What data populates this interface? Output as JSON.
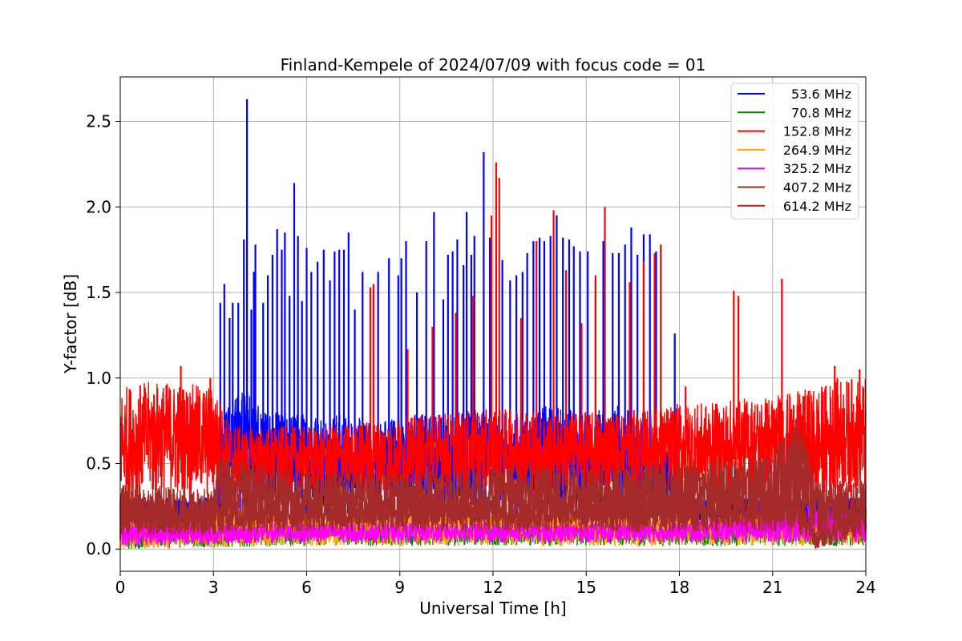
{
  "chart_data": {
    "type": "line",
    "title": "Finland-Kempele of 2024/07/09 with focus code = 01",
    "xlabel": "Universal Time [h]",
    "ylabel": "Y-factor [dB]",
    "xlim": [
      0,
      24
    ],
    "ylim": [
      -0.13,
      2.76
    ],
    "xticks": [
      0,
      3,
      6,
      9,
      12,
      15,
      18,
      21,
      24
    ],
    "xtick_labels": [
      "0",
      "3",
      "6",
      "9",
      "12",
      "15",
      "18",
      "21",
      "24"
    ],
    "yticks": [
      0.0,
      0.5,
      1.0,
      1.5,
      2.0,
      2.5
    ],
    "ytick_labels": [
      "0.0",
      "0.5",
      "1.0",
      "1.5",
      "2.0",
      "2.5"
    ],
    "grid": true,
    "legend_position": "top-right",
    "series": [
      {
        "name": "53.6 MHz",
        "color": "#0000ff",
        "envelope_x": [
          0,
          3,
          3.2,
          4,
          5,
          6,
          7,
          8,
          9,
          10,
          11,
          12,
          13,
          14,
          15,
          16,
          17,
          17.8,
          18,
          21,
          24
        ],
        "envelope_low": [
          0.1,
          0.1,
          0.15,
          0.2,
          0.2,
          0.2,
          0.2,
          0.2,
          0.2,
          0.2,
          0.2,
          0.2,
          0.2,
          0.2,
          0.2,
          0.2,
          0.2,
          0.15,
          0.1,
          0.1,
          0.1
        ],
        "envelope_high": [
          0.3,
          0.3,
          0.8,
          0.95,
          0.8,
          0.8,
          0.8,
          0.75,
          0.8,
          0.8,
          0.8,
          0.8,
          0.8,
          0.85,
          0.8,
          0.85,
          0.75,
          0.6,
          0.3,
          0.3,
          0.3
        ],
        "spikes": [
          [
            3.22,
            1.44
          ],
          [
            3.35,
            1.55
          ],
          [
            3.52,
            1.35
          ],
          [
            3.62,
            1.44
          ],
          [
            3.8,
            1.44
          ],
          [
            3.98,
            1.81
          ],
          [
            4.08,
            2.63
          ],
          [
            4.22,
            1.4
          ],
          [
            4.3,
            1.62
          ],
          [
            4.35,
            1.78
          ],
          [
            4.6,
            1.44
          ],
          [
            4.75,
            1.6
          ],
          [
            4.9,
            1.72
          ],
          [
            5.05,
            1.87
          ],
          [
            5.2,
            1.75
          ],
          [
            5.3,
            1.85
          ],
          [
            5.45,
            1.48
          ],
          [
            5.6,
            2.14
          ],
          [
            5.72,
            1.83
          ],
          [
            5.85,
            1.45
          ],
          [
            6.0,
            1.76
          ],
          [
            6.15,
            1.62
          ],
          [
            6.35,
            1.68
          ],
          [
            6.55,
            1.75
          ],
          [
            6.75,
            1.57
          ],
          [
            6.9,
            1.74
          ],
          [
            7.05,
            1.75
          ],
          [
            7.2,
            1.75
          ],
          [
            7.35,
            1.85
          ],
          [
            7.55,
            1.4
          ],
          [
            7.8,
            1.62
          ],
          [
            8.3,
            1.62
          ],
          [
            8.65,
            1.7
          ],
          [
            8.95,
            1.6
          ],
          [
            9.05,
            1.7
          ],
          [
            9.2,
            1.8
          ],
          [
            9.55,
            1.5
          ],
          [
            9.85,
            1.8
          ],
          [
            10.1,
            1.97
          ],
          [
            10.4,
            1.46
          ],
          [
            10.55,
            1.72
          ],
          [
            10.7,
            1.74
          ],
          [
            10.85,
            1.81
          ],
          [
            11.05,
            1.66
          ],
          [
            11.15,
            1.97
          ],
          [
            11.3,
            1.72
          ],
          [
            11.4,
            1.83
          ],
          [
            11.7,
            2.32
          ],
          [
            11.9,
            1.82
          ],
          [
            12.3,
            1.69
          ],
          [
            12.55,
            1.57
          ],
          [
            12.75,
            1.6
          ],
          [
            12.95,
            1.62
          ],
          [
            13.1,
            1.73
          ],
          [
            13.3,
            1.8
          ],
          [
            13.5,
            1.82
          ],
          [
            13.65,
            1.8
          ],
          [
            13.85,
            1.83
          ],
          [
            14.05,
            1.95
          ],
          [
            14.25,
            1.82
          ],
          [
            14.45,
            1.81
          ],
          [
            14.6,
            1.77
          ],
          [
            14.8,
            1.74
          ],
          [
            15.05,
            1.74
          ],
          [
            15.3,
            1.57
          ],
          [
            15.55,
            1.8
          ],
          [
            15.85,
            1.73
          ],
          [
            16.05,
            1.73
          ],
          [
            16.25,
            1.78
          ],
          [
            16.45,
            1.88
          ],
          [
            16.65,
            1.72
          ],
          [
            16.85,
            1.84
          ],
          [
            17.05,
            1.84
          ],
          [
            17.25,
            1.74
          ],
          [
            17.85,
            1.26
          ]
        ]
      },
      {
        "name": "70.8 MHz",
        "color": "#008000",
        "envelope_x": [
          0,
          6,
          12,
          18,
          24
        ],
        "envelope_low": [
          0.0,
          0.02,
          0.02,
          0.02,
          0.02
        ],
        "envelope_high": [
          0.18,
          0.18,
          0.18,
          0.18,
          0.18
        ],
        "spikes": []
      },
      {
        "name": "152.8 MHz",
        "color": "#ff0000",
        "envelope_x": [
          0,
          1,
          2,
          3,
          3.5,
          4,
          5,
          6,
          7,
          8,
          9,
          10,
          11,
          12,
          13,
          14,
          15,
          16,
          17,
          18,
          19,
          20,
          21,
          21.8,
          22.5,
          23,
          24
        ],
        "envelope_low": [
          0.25,
          0.3,
          0.3,
          0.3,
          0.3,
          0.3,
          0.3,
          0.3,
          0.3,
          0.3,
          0.3,
          0.3,
          0.3,
          0.3,
          0.3,
          0.3,
          0.3,
          0.3,
          0.3,
          0.3,
          0.3,
          0.3,
          0.3,
          0.25,
          0.2,
          0.3,
          0.3
        ],
        "envelope_high": [
          0.95,
          0.98,
          0.97,
          0.95,
          0.75,
          0.7,
          0.72,
          0.72,
          0.72,
          0.75,
          0.75,
          0.8,
          0.8,
          0.82,
          0.82,
          0.8,
          0.8,
          0.8,
          0.82,
          0.85,
          0.85,
          0.88,
          0.9,
          0.92,
          0.95,
          1.0,
          1.0
        ],
        "spikes": [
          [
            1.95,
            1.07
          ],
          [
            2.9,
            1.0
          ],
          [
            8.05,
            1.53
          ],
          [
            8.15,
            1.55
          ],
          [
            9.25,
            1.17
          ],
          [
            10.05,
            1.3
          ],
          [
            10.8,
            1.38
          ],
          [
            11.35,
            1.48
          ],
          [
            11.95,
            1.95
          ],
          [
            12.1,
            2.26
          ],
          [
            12.2,
            2.17
          ],
          [
            12.9,
            1.35
          ],
          [
            13.4,
            1.8
          ],
          [
            13.95,
            1.98
          ],
          [
            14.35,
            1.63
          ],
          [
            14.85,
            1.32
          ],
          [
            15.3,
            1.6
          ],
          [
            15.6,
            2.0
          ],
          [
            16.4,
            1.56
          ],
          [
            16.85,
            1.68
          ],
          [
            17.2,
            1.73
          ],
          [
            17.4,
            1.78
          ],
          [
            18.2,
            0.95
          ],
          [
            19.75,
            1.51
          ],
          [
            19.9,
            1.48
          ],
          [
            21.3,
            1.58
          ],
          [
            23.0,
            1.07
          ],
          [
            23.8,
            1.05
          ]
        ]
      },
      {
        "name": "264.9 MHz",
        "color": "#ffa500",
        "envelope_x": [
          0,
          6,
          12,
          18,
          24
        ],
        "envelope_low": [
          0.0,
          0.02,
          0.02,
          0.02,
          0.02
        ],
        "envelope_high": [
          0.22,
          0.22,
          0.22,
          0.22,
          0.22
        ],
        "spikes": [
          [
            0.3,
            0.3
          ],
          [
            3.5,
            0.3
          ],
          [
            16.8,
            0.3
          ],
          [
            22.2,
            0.3
          ]
        ]
      },
      {
        "name": "325.2 MHz",
        "color": "#ff00ff",
        "envelope_x": [
          0,
          6,
          12,
          18,
          22,
          22.5,
          24
        ],
        "envelope_low": [
          0.02,
          0.04,
          0.04,
          0.04,
          0.04,
          0.04,
          0.04
        ],
        "envelope_high": [
          0.15,
          0.15,
          0.15,
          0.15,
          0.22,
          0.28,
          0.2
        ],
        "spikes": [
          [
            0.1,
            0.28
          ],
          [
            22.3,
            0.3
          ]
        ]
      },
      {
        "name": "407.2 MHz",
        "color": "#a52a2a",
        "envelope_x": [
          0,
          3,
          3.2,
          6,
          9,
          12,
          15,
          18,
          21,
          21.8,
          22.4,
          23,
          24
        ],
        "envelope_low": [
          0.08,
          0.08,
          0.12,
          0.12,
          0.12,
          0.12,
          0.12,
          0.12,
          0.15,
          0.15,
          0.05,
          0.1,
          0.1
        ],
        "envelope_high": [
          0.38,
          0.35,
          0.55,
          0.45,
          0.45,
          0.48,
          0.48,
          0.5,
          0.55,
          0.82,
          0.4,
          0.4,
          0.4
        ],
        "spikes": []
      },
      {
        "name": "614.2 MHz",
        "color": "#a52a2a",
        "envelope_x": [
          0,
          6,
          12,
          18,
          21.8,
          22.4,
          24
        ],
        "envelope_low": [
          0.08,
          0.1,
          0.1,
          0.1,
          0.1,
          0.0,
          0.08
        ],
        "envelope_high": [
          0.3,
          0.3,
          0.3,
          0.32,
          0.35,
          0.1,
          0.3
        ],
        "spikes": []
      }
    ]
  }
}
